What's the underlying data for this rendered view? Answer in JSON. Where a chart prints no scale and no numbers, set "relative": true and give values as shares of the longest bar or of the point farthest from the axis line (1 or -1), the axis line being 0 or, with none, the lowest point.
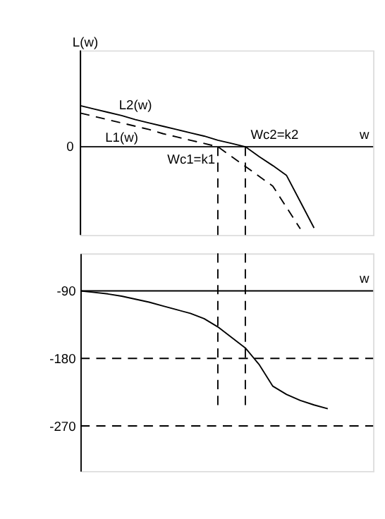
{
  "chart_data": [
    {
      "type": "line",
      "relative": true,
      "ylabel": "L(w)",
      "xlabel": "w",
      "tick_labels": false,
      "grid": false,
      "categories": [
        null,
        null,
        null,
        null,
        null,
        null,
        null,
        null,
        null,
        null,
        null,
        null,
        null,
        null,
        null,
        null,
        null,
        null,
        null,
        null,
        null
      ],
      "series": [
        {
          "name": "L2(w)",
          "color": "#000000",
          "line_style": "solid",
          "values": [
            0.5,
            0.46,
            0.42,
            0.38,
            0.33,
            0.29,
            0.25,
            0.21,
            0.17,
            0.13,
            0.08,
            0.04,
            0,
            -0.12,
            -0.23,
            -0.35,
            -0.67,
            -0.99,
            null,
            null,
            null
          ]
        },
        {
          "name": "L1(w)",
          "color": "#000000",
          "line_style": "dashed",
          "values": [
            0.41,
            0.37,
            0.33,
            0.29,
            0.25,
            0.21,
            0.16,
            0.12,
            0.08,
            0.04,
            0,
            -0.12,
            -0.24,
            -0.36,
            -0.48,
            -0.74,
            -1,
            null,
            null,
            null,
            null
          ]
        }
      ],
      "annotations": [
        "0",
        "Wc1=k1",
        "Wc2=k2"
      ]
    },
    {
      "type": "line",
      "xlabel": "w",
      "ylim": [
        -330,
        -40
      ],
      "yticks": [
        -90,
        -180,
        -270
      ],
      "tick_labels": "y",
      "grid": false,
      "categories": [
        null,
        null,
        null,
        null,
        null,
        null,
        null,
        null,
        null,
        null,
        null,
        null,
        null,
        null,
        null,
        null,
        null,
        null,
        null,
        null,
        null
      ],
      "series": [
        {
          "color": "#000000",
          "line_style": "solid",
          "values": [
            -90,
            -92,
            -94,
            -97,
            -101,
            -105,
            -110,
            -115,
            -120,
            -127,
            -138,
            -152,
            -166,
            -188,
            -217,
            -228,
            -236,
            -242,
            -247,
            null,
            null
          ]
        }
      ],
      "ref_lines": [
        {
          "axis": "y",
          "value": -90,
          "line_style": "solid"
        },
        {
          "axis": "y",
          "value": -180,
          "line_style": "dashed"
        },
        {
          "axis": "y",
          "value": -270,
          "line_style": "dashed"
        }
      ]
    }
  ]
}
